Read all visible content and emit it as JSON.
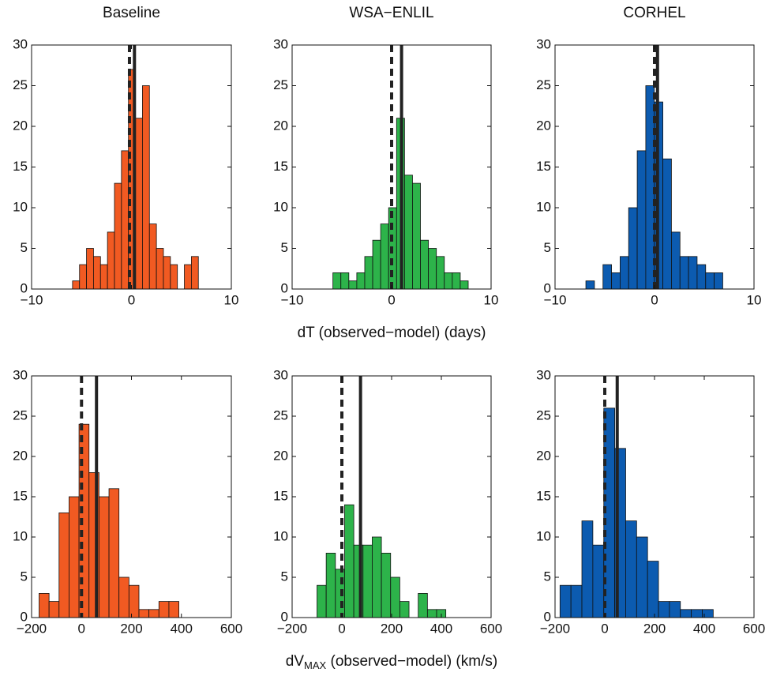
{
  "chart_data": [
    {
      "type": "histogram",
      "title": "Baseline",
      "color": "#f15a22",
      "bins": [
        -5.9,
        -5.2,
        -4.5,
        -3.8,
        -3.1,
        -2.4,
        -1.7,
        -1.0,
        -0.3,
        0.4,
        1.1,
        1.8,
        2.5,
        3.2,
        3.9,
        4.6,
        5.3,
        6.0,
        6.7
      ],
      "counts": [
        1,
        3,
        5,
        4,
        3,
        7,
        13,
        17,
        27,
        21,
        25,
        8,
        5,
        4,
        3,
        0,
        3,
        4
      ],
      "vlines": [
        {
          "value": -0.2,
          "style": "dashed"
        },
        {
          "value": 0.3,
          "style": "solid"
        }
      ],
      "xlim": [
        -10,
        10
      ],
      "xticks": [
        {
          "value": -10,
          "label": "−10"
        },
        0,
        10
      ],
      "ylim": [
        0,
        30
      ],
      "yticks": [
        0,
        5,
        10,
        15,
        20,
        25,
        30
      ]
    },
    {
      "type": "histogram",
      "title": "WSA−ENLIL",
      "color": "#2db34a",
      "xlabel": [
        "dT (observed−model) (days)"
      ],
      "bins": [
        -5.9,
        -5.1,
        -4.3,
        -3.5,
        -2.7,
        -1.9,
        -1.1,
        -0.3,
        0.5,
        1.3,
        2.1,
        2.9,
        3.7,
        4.5,
        5.3,
        6.1,
        6.9,
        7.7
      ],
      "counts": [
        2,
        2,
        1,
        2,
        4,
        6,
        8,
        10,
        21,
        14,
        13,
        6,
        5,
        4,
        2,
        2,
        1
      ],
      "vlines": [
        {
          "value": 0,
          "style": "dashed"
        },
        {
          "value": 1.0,
          "style": "solid"
        }
      ],
      "xlim": [
        -10,
        10
      ],
      "xticks": [
        {
          "value": -10,
          "label": "−10"
        },
        0,
        10
      ],
      "ylim": [
        0,
        30
      ],
      "yticks": [
        0,
        5,
        10,
        15,
        20,
        25,
        30
      ]
    },
    {
      "type": "histogram",
      "title": "CORHEL",
      "color": "#0c5bb0",
      "bins": [
        -6.9,
        -6.04,
        -5.18,
        -4.32,
        -3.46,
        -2.6,
        -1.74,
        -0.88,
        -0.02,
        0.84,
        1.7,
        2.56,
        3.42,
        4.28,
        5.14,
        6.0,
        6.86
      ],
      "counts": [
        1,
        0,
        3,
        2,
        4,
        10,
        17,
        25,
        23,
        16,
        7,
        4,
        4,
        3,
        2,
        2
      ],
      "vlines": [
        {
          "value": 0,
          "style": "dashed"
        },
        {
          "value": 0.3,
          "style": "solid"
        }
      ],
      "xlim": [
        -10,
        10
      ],
      "xticks": [
        {
          "value": -10,
          "label": "−10"
        },
        0,
        10
      ],
      "ylim": [
        0,
        30
      ],
      "yticks": [
        0,
        5,
        10,
        15,
        20,
        25,
        30
      ]
    },
    {
      "type": "histogram",
      "color": "#f15a22",
      "bins": [
        -170,
        -130,
        -90,
        -50,
        -10,
        30,
        70,
        110,
        150,
        190,
        230,
        270,
        310,
        350,
        390
      ],
      "counts": [
        3,
        2,
        13,
        15,
        24,
        18,
        15,
        16,
        5,
        4,
        1,
        1,
        2,
        2
      ],
      "vlines": [
        {
          "value": 0,
          "style": "dashed"
        },
        {
          "value": 60,
          "style": "solid"
        }
      ],
      "xlim": [
        -200,
        600
      ],
      "xticks": [
        {
          "value": -200,
          "label": "−200"
        },
        0,
        200,
        400,
        600
      ],
      "ylim": [
        0,
        30
      ],
      "yticks": [
        0,
        5,
        10,
        15,
        20,
        25,
        30
      ]
    },
    {
      "type": "histogram",
      "color": "#2db34a",
      "xlabel": [
        "dV",
        "MAX",
        " (observed−model) (km/s)"
      ],
      "bins": [
        -100,
        -63,
        -26,
        11,
        48,
        85,
        122,
        159,
        196,
        233,
        270,
        307,
        344,
        381,
        418
      ],
      "counts": [
        4,
        8,
        6,
        14,
        9,
        9,
        10,
        8,
        5,
        2,
        0,
        3,
        1,
        1
      ],
      "vlines": [
        {
          "value": 0,
          "style": "dashed"
        },
        {
          "value": 75,
          "style": "solid"
        }
      ],
      "xlim": [
        -200,
        600
      ],
      "xticks": [
        {
          "value": -200,
          "label": "−200"
        },
        0,
        200,
        400,
        600
      ],
      "ylim": [
        0,
        30
      ],
      "yticks": [
        0,
        5,
        10,
        15,
        20,
        25,
        30
      ]
    },
    {
      "type": "histogram",
      "color": "#0c5bb0",
      "bins": [
        -180,
        -136,
        -92,
        -48,
        -4,
        40,
        84,
        128,
        172,
        216,
        260,
        304,
        348,
        392,
        436
      ],
      "counts": [
        4,
        4,
        12,
        9,
        26,
        21,
        12,
        10,
        7,
        2,
        2,
        1,
        1,
        1
      ],
      "vlines": [
        {
          "value": 0,
          "style": "dashed"
        },
        {
          "value": 50,
          "style": "solid"
        }
      ],
      "xlim": [
        -200,
        600
      ],
      "xticks": [
        {
          "value": -200,
          "label": "−200"
        },
        0,
        200,
        400,
        600
      ],
      "ylim": [
        0,
        30
      ],
      "yticks": [
        0,
        5,
        10,
        15,
        20,
        25,
        30
      ]
    }
  ]
}
